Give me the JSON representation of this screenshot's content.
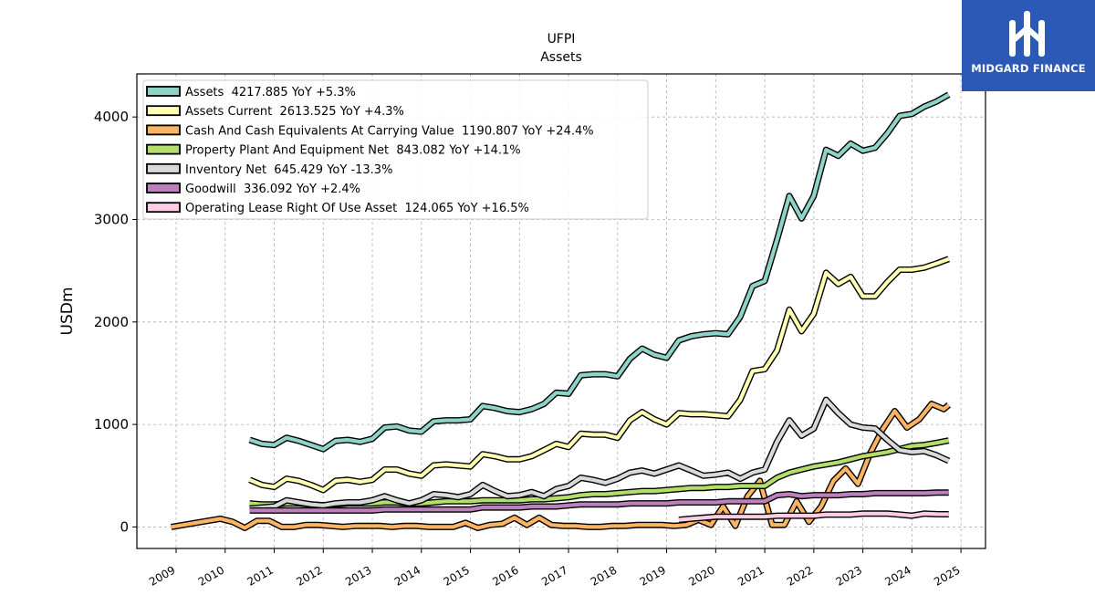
{
  "brand": {
    "name": "MIDGARD FINANCE",
    "color": "#2c59b5"
  },
  "chart_data": {
    "type": "line",
    "title": "UFPI",
    "subtitle": "Assets",
    "xlabel": "",
    "ylabel": "USDm",
    "xlim": [
      2008.2,
      2025.5
    ],
    "ylim": [
      -210,
      4420
    ],
    "x_ticks": [
      "2009",
      "2010",
      "2011",
      "2012",
      "2013",
      "2014",
      "2015",
      "2016",
      "2017",
      "2018",
      "2019",
      "2020",
      "2021",
      "2022",
      "2023",
      "2024",
      "2025"
    ],
    "y_ticks": [
      0,
      1000,
      2000,
      3000,
      4000
    ],
    "grid": true,
    "legend_position": "top-left",
    "series": [
      {
        "name": "Assets  4217.885 YoY +5.3%",
        "color": "#8dd3c7",
        "x": [
          2010.5,
          2010.75,
          2011,
          2011.25,
          2011.5,
          2011.75,
          2012,
          2012.25,
          2012.5,
          2012.75,
          2013,
          2013.25,
          2013.5,
          2013.75,
          2014,
          2014.25,
          2014.5,
          2014.75,
          2015,
          2015.25,
          2015.5,
          2015.75,
          2016,
          2016.25,
          2016.5,
          2016.75,
          2017,
          2017.25,
          2017.5,
          2017.75,
          2018,
          2018.25,
          2018.5,
          2018.75,
          2019,
          2019.25,
          2019.5,
          2019.75,
          2020,
          2020.25,
          2020.5,
          2020.75,
          2021,
          2021.25,
          2021.5,
          2021.75,
          2022,
          2022.25,
          2022.5,
          2022.75,
          2023,
          2023.25,
          2023.5,
          2023.75,
          2024,
          2024.25,
          2024.5,
          2024.75
        ],
        "y": [
          850,
          810,
          800,
          870,
          840,
          800,
          760,
          840,
          850,
          830,
          860,
          970,
          980,
          940,
          930,
          1030,
          1040,
          1040,
          1050,
          1180,
          1160,
          1130,
          1120,
          1150,
          1200,
          1310,
          1300,
          1480,
          1490,
          1490,
          1470,
          1640,
          1740,
          1680,
          1650,
          1820,
          1860,
          1880,
          1890,
          1880,
          2050,
          2350,
          2400,
          2800,
          3230,
          3010,
          3230,
          3680,
          3620,
          3740,
          3670,
          3700,
          3840,
          4010,
          4030,
          4100,
          4150,
          4218
        ]
      },
      {
        "name": "Assets Current  2613.525 YoY +4.3%",
        "color": "#ffffb3",
        "x": [
          2010.5,
          2010.75,
          2011,
          2011.25,
          2011.5,
          2011.75,
          2012,
          2012.25,
          2012.5,
          2012.75,
          2013,
          2013.25,
          2013.5,
          2013.75,
          2014,
          2014.25,
          2014.5,
          2014.75,
          2015,
          2015.25,
          2015.5,
          2015.75,
          2016,
          2016.25,
          2016.5,
          2016.75,
          2017,
          2017.25,
          2017.5,
          2017.75,
          2018,
          2018.25,
          2018.5,
          2018.75,
          2019,
          2019.25,
          2019.5,
          2019.75,
          2020,
          2020.25,
          2020.5,
          2020.75,
          2021,
          2021.25,
          2021.5,
          2021.75,
          2022,
          2022.25,
          2022.5,
          2022.75,
          2023,
          2023.25,
          2023.5,
          2023.75,
          2024,
          2024.25,
          2024.5,
          2024.75
        ],
        "y": [
          460,
          410,
          390,
          470,
          450,
          410,
          360,
          450,
          460,
          440,
          460,
          560,
          560,
          520,
          500,
          600,
          610,
          600,
          590,
          710,
          690,
          660,
          660,
          690,
          750,
          810,
          780,
          910,
          900,
          900,
          870,
          1040,
          1120,
          1050,
          1000,
          1110,
          1100,
          1100,
          1090,
          1080,
          1240,
          1520,
          1540,
          1720,
          2120,
          1910,
          2080,
          2480,
          2370,
          2440,
          2250,
          2250,
          2390,
          2510,
          2510,
          2530,
          2570,
          2614
        ]
      },
      {
        "name": "Cash And Cash Equivalents At Carrying Value  1190.807 YoY +24.4%",
        "color": "#fdb462",
        "x": [
          2008.9,
          2009.15,
          2009.4,
          2009.65,
          2009.9,
          2010.15,
          2010.4,
          2010.65,
          2010.9,
          2011.15,
          2011.4,
          2011.65,
          2011.9,
          2012.15,
          2012.4,
          2012.65,
          2012.9,
          2013.15,
          2013.4,
          2013.65,
          2013.9,
          2014.15,
          2014.4,
          2014.65,
          2014.9,
          2015.15,
          2015.4,
          2015.65,
          2015.9,
          2016.15,
          2016.4,
          2016.65,
          2016.9,
          2017.15,
          2017.4,
          2017.65,
          2017.9,
          2018.15,
          2018.4,
          2018.65,
          2018.9,
          2019.15,
          2019.4,
          2019.65,
          2019.9,
          2020.15,
          2020.4,
          2020.65,
          2020.9,
          2021.15,
          2021.4,
          2021.65,
          2021.9,
          2022.15,
          2022.4,
          2022.65,
          2022.9,
          2023.15,
          2023.4,
          2023.65,
          2023.9,
          2024.15,
          2024.4,
          2024.65,
          2024.75
        ],
        "y": [
          0,
          20,
          40,
          60,
          80,
          50,
          -10,
          60,
          60,
          0,
          0,
          20,
          20,
          10,
          0,
          10,
          10,
          10,
          0,
          10,
          10,
          0,
          0,
          0,
          40,
          -10,
          20,
          30,
          90,
          20,
          90,
          20,
          10,
          10,
          0,
          0,
          10,
          10,
          20,
          20,
          20,
          10,
          20,
          70,
          20,
          200,
          10,
          300,
          450,
          20,
          20,
          250,
          50,
          200,
          450,
          570,
          420,
          720,
          950,
          1130,
          970,
          1050,
          1200,
          1150,
          1191
        ]
      },
      {
        "name": "Property Plant And Equipment Net  843.082 YoY +14.1%",
        "color": "#b3de69",
        "x": [
          2010.5,
          2010.75,
          2011,
          2011.25,
          2011.5,
          2011.75,
          2012,
          2012.25,
          2012.5,
          2012.75,
          2013,
          2013.25,
          2013.5,
          2013.75,
          2014,
          2014.25,
          2014.5,
          2014.75,
          2015,
          2015.25,
          2015.5,
          2015.75,
          2016,
          2016.25,
          2016.5,
          2016.75,
          2017,
          2017.25,
          2017.5,
          2017.75,
          2018,
          2018.25,
          2018.5,
          2018.75,
          2019,
          2019.25,
          2019.5,
          2019.75,
          2020,
          2020.25,
          2020.5,
          2020.75,
          2021,
          2021.25,
          2021.5,
          2021.75,
          2022,
          2022.25,
          2022.5,
          2022.75,
          2023,
          2023.25,
          2023.5,
          2023.75,
          2024,
          2024.25,
          2024.5,
          2024.75
        ],
        "y": [
          230,
          220,
          220,
          230,
          230,
          220,
          210,
          220,
          230,
          230,
          230,
          240,
          240,
          230,
          230,
          240,
          250,
          250,
          250,
          260,
          260,
          260,
          260,
          270,
          270,
          280,
          290,
          310,
          320,
          320,
          330,
          340,
          350,
          350,
          360,
          370,
          380,
          380,
          390,
          390,
          400,
          400,
          400,
          480,
          530,
          560,
          590,
          610,
          630,
          660,
          690,
          710,
          730,
          760,
          790,
          800,
          820,
          843
        ]
      },
      {
        "name": "Inventory Net  645.429 YoY -13.3%",
        "color": "#d9d9d9",
        "x": [
          2010.5,
          2010.75,
          2011,
          2011.25,
          2011.5,
          2011.75,
          2012,
          2012.25,
          2012.5,
          2012.75,
          2013,
          2013.25,
          2013.5,
          2013.75,
          2014,
          2014.25,
          2014.5,
          2014.75,
          2015,
          2015.25,
          2015.5,
          2015.75,
          2016,
          2016.25,
          2016.5,
          2016.75,
          2017,
          2017.25,
          2017.5,
          2017.75,
          2018,
          2018.25,
          2018.5,
          2018.75,
          2019,
          2019.25,
          2019.5,
          2019.75,
          2020,
          2020.25,
          2020.5,
          2020.75,
          2021,
          2021.25,
          2021.5,
          2021.75,
          2022,
          2022.25,
          2022.5,
          2022.75,
          2023,
          2023.25,
          2023.5,
          2023.75,
          2024,
          2024.25,
          2024.5,
          2024.75
        ],
        "y": [
          180,
          190,
          200,
          260,
          240,
          220,
          210,
          230,
          240,
          240,
          260,
          300,
          260,
          230,
          260,
          320,
          310,
          290,
          320,
          410,
          350,
          300,
          310,
          340,
          300,
          370,
          400,
          480,
          460,
          430,
          470,
          530,
          550,
          520,
          560,
          600,
          550,
          500,
          510,
          530,
          470,
          530,
          560,
          830,
          1040,
          890,
          960,
          1240,
          1110,
          1000,
          970,
          960,
          850,
          750,
          730,
          740,
          700,
          645
        ]
      },
      {
        "name": "Goodwill  336.092 YoY +2.4%",
        "color": "#bc80bd",
        "x": [
          2010.5,
          2010.75,
          2011,
          2011.25,
          2011.5,
          2011.75,
          2012,
          2012.25,
          2012.5,
          2012.75,
          2013,
          2013.25,
          2013.5,
          2013.75,
          2014,
          2014.25,
          2014.5,
          2014.75,
          2015,
          2015.25,
          2015.5,
          2015.75,
          2016,
          2016.25,
          2016.5,
          2016.75,
          2017,
          2017.25,
          2017.5,
          2017.75,
          2018,
          2018.25,
          2018.5,
          2018.75,
          2019,
          2019.25,
          2019.5,
          2019.75,
          2020,
          2020.25,
          2020.5,
          2020.75,
          2021,
          2021.25,
          2021.5,
          2021.75,
          2022,
          2022.25,
          2022.5,
          2022.75,
          2023,
          2023.25,
          2023.5,
          2023.75,
          2024,
          2024.25,
          2024.5,
          2024.75
        ],
        "y": [
          160,
          160,
          160,
          160,
          160,
          160,
          160,
          160,
          160,
          160,
          160,
          170,
          170,
          170,
          170,
          170,
          170,
          170,
          170,
          190,
          190,
          190,
          190,
          200,
          200,
          200,
          210,
          220,
          220,
          220,
          220,
          230,
          230,
          230,
          230,
          240,
          240,
          240,
          240,
          250,
          250,
          250,
          250,
          310,
          320,
          300,
          310,
          310,
          310,
          320,
          320,
          330,
          330,
          330,
          330,
          330,
          335,
          336
        ]
      },
      {
        "name": "Operating Lease Right Of Use Asset  124.065 YoY +16.5%",
        "color": "#fccde5",
        "x": [
          2019.25,
          2019.5,
          2019.75,
          2020,
          2020.25,
          2020.5,
          2020.75,
          2021,
          2021.25,
          2021.5,
          2021.75,
          2022,
          2022.25,
          2022.5,
          2022.75,
          2023,
          2023.25,
          2023.5,
          2023.75,
          2024,
          2024.25,
          2024.5,
          2024.75
        ],
        "y": [
          70,
          80,
          90,
          100,
          100,
          100,
          100,
          100,
          110,
          110,
          110,
          110,
          120,
          120,
          120,
          130,
          130,
          130,
          120,
          110,
          130,
          125,
          124
        ]
      }
    ]
  }
}
